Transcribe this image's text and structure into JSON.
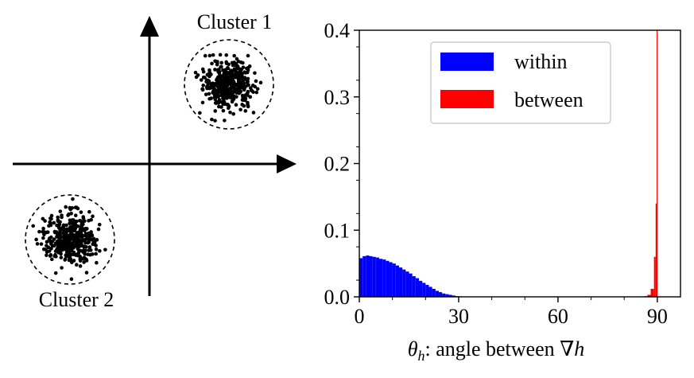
{
  "colors": {
    "within": "#0000ff",
    "between": "#ff0000",
    "axis": "#000000",
    "points": "#000000"
  },
  "chart_data": [
    {
      "type": "scatter",
      "labels": {
        "cluster1": "Cluster 1",
        "cluster2": "Cluster 2"
      },
      "grid": false,
      "axes": "cross-arrows"
    },
    {
      "type": "bar",
      "xlabel_parts": {
        "theta": "θ",
        "sub": "h",
        "rest": ": angle between ∇",
        "h": "h"
      },
      "xlim": [
        0,
        97
      ],
      "ylim": [
        0,
        0.4
      ],
      "xticks": [
        "0",
        "30",
        "60",
        "90"
      ],
      "yticks": [
        "0.0",
        "0.1",
        "0.2",
        "0.3",
        "0.4"
      ],
      "legend": {
        "position": "top-center",
        "entries": [
          "within",
          "between"
        ]
      },
      "grid": false,
      "bin_width": 1,
      "series": [
        {
          "name": "within",
          "x": [
            0,
            1,
            2,
            3,
            4,
            5,
            6,
            7,
            8,
            9,
            10,
            11,
            12,
            13,
            14,
            15,
            16,
            17,
            18,
            19,
            20,
            21,
            22,
            23,
            24,
            25,
            26,
            27,
            28,
            29,
            30,
            31
          ],
          "values": [
            0.058,
            0.061,
            0.062,
            0.061,
            0.06,
            0.059,
            0.057,
            0.056,
            0.054,
            0.052,
            0.05,
            0.047,
            0.044,
            0.041,
            0.038,
            0.035,
            0.031,
            0.028,
            0.024,
            0.021,
            0.018,
            0.015,
            0.012,
            0.009,
            0.007,
            0.005,
            0.004,
            0.003,
            0.002,
            0.001,
            0.0008,
            0.0004
          ]
        },
        {
          "name": "between",
          "x": [
            86,
            87,
            88,
            89,
            89.5,
            89.8
          ],
          "values": [
            0.001,
            0.003,
            0.012,
            0.06,
            0.14,
            0.4
          ]
        }
      ]
    }
  ]
}
